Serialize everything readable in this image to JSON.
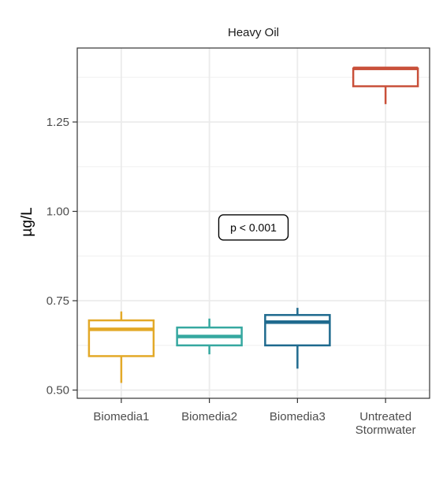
{
  "chart_data": {
    "type": "box",
    "title": "Heavy Oil",
    "xlabel": "",
    "ylabel": "µg/L",
    "ylim": [
      0.477,
      1.457
    ],
    "grid": true,
    "y_ticks": [
      0.5,
      0.75,
      1.0,
      1.25
    ],
    "y_tick_labels": [
      "0.50",
      "0.75",
      "1.00",
      "1.25"
    ],
    "categories": [
      {
        "label_lines": [
          "Biomedia1"
        ]
      },
      {
        "label_lines": [
          "Biomedia2"
        ]
      },
      {
        "label_lines": [
          "Biomedia3"
        ]
      },
      {
        "label_lines": [
          "Untreated",
          "Stormwater"
        ]
      }
    ],
    "boxes": [
      {
        "category": "Biomedia1",
        "min": 0.52,
        "q1": 0.595,
        "median": 0.67,
        "q3": 0.695,
        "max": 0.72,
        "color": "#E3A928"
      },
      {
        "category": "Biomedia2",
        "min": 0.6,
        "q1": 0.625,
        "median": 0.65,
        "q3": 0.675,
        "max": 0.7,
        "color": "#36A8A0"
      },
      {
        "category": "Biomedia3",
        "min": 0.56,
        "q1": 0.625,
        "median": 0.69,
        "q3": 0.71,
        "max": 0.73,
        "color": "#1F6A8E"
      },
      {
        "category": "Untreated Stormwater",
        "min": 1.3,
        "q1": 1.35,
        "median": 1.4,
        "q3": 1.4,
        "max": 1.4,
        "color": "#C9503A"
      }
    ],
    "annotation": {
      "text": "p < 0.001",
      "x_category_index": 1.5,
      "y": 0.955
    }
  }
}
